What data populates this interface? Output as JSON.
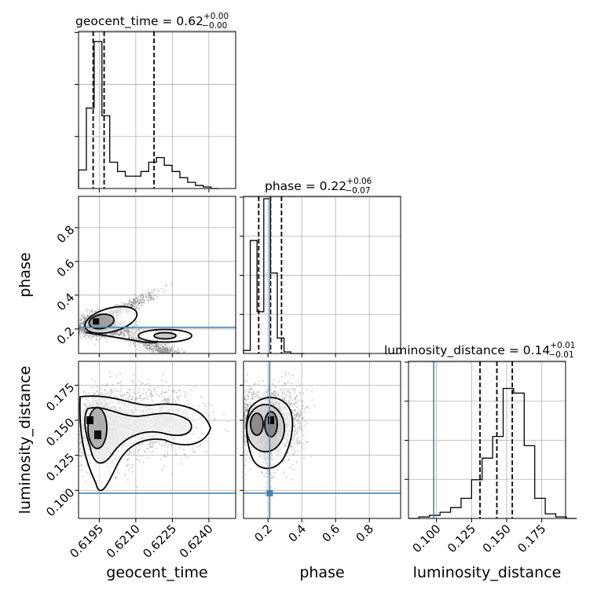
{
  "chart_data": {
    "type": "corner",
    "parameters": [
      "geocent_time",
      "phase",
      "luminosity_distance"
    ],
    "titles": [
      {
        "main": "geocent_time = 0.62",
        "sup": "+0.00",
        "sub": "−0.00"
      },
      {
        "main": "phase = 0.22",
        "sup": "+0.06",
        "sub": "−0.07"
      },
      {
        "main": "luminosity_distance = 0.14",
        "sup": "+0.01",
        "sub": "−0.01"
      }
    ],
    "axis_labels": {
      "x": [
        "geocent_time",
        "phase",
        "luminosity_distance"
      ],
      "y": [
        "phase",
        "luminosity_distance"
      ]
    },
    "ranges": {
      "geocent_time": [
        0.61865,
        0.6251
      ],
      "phase": [
        0.055,
        0.985
      ],
      "luminosity_distance": [
        0.08,
        0.192
      ]
    },
    "ticks": {
      "geocent_time": [
        0.6195,
        0.621,
        0.6225,
        0.624
      ],
      "phase": [
        0.2,
        0.4,
        0.6,
        0.8
      ],
      "luminosity_distance": [
        0.1,
        0.125,
        0.15,
        0.175
      ]
    },
    "tick_labels": {
      "geocent_time": [
        "0.6195",
        "0.6210",
        "0.6225",
        "0.6240"
      ],
      "phase": [
        "0.2",
        "0.4",
        "0.6",
        "0.8"
      ],
      "luminosity_distance": [
        "0.100",
        "0.125",
        "0.150",
        "0.175"
      ]
    },
    "truths": {
      "geocent_time": null,
      "phase": 0.21,
      "luminosity_distance": 0.098
    },
    "truth_color": "#4682b4",
    "quantiles": {
      "geocent_time": [
        0.61925,
        0.6197,
        0.62175
      ],
      "phase": [
        0.145,
        0.215,
        0.28
      ],
      "luminosity_distance": [
        0.131,
        0.143,
        0.154
      ]
    },
    "histograms": {
      "geocent_time": {
        "edges_start": 0.61865,
        "bin_width": 0.00032,
        "counts": [
          0.12,
          0.52,
          0.95,
          0.47,
          0.17,
          0.11,
          0.08,
          0.08,
          0.11,
          0.17,
          0.2,
          0.15,
          0.11,
          0.07,
          0.04,
          0.02,
          0.01,
          0
        ]
      },
      "phase": {
        "edges_start": 0.055,
        "bin_width": 0.04,
        "counts": [
          0.02,
          0.73,
          0.27,
          1.0,
          0.52,
          0.1,
          0.01,
          0,
          0
        ]
      },
      "luminosity_distance": {
        "edges_start": 0.08,
        "bin_width": 0.0075,
        "counts": [
          0,
          0.01,
          0.02,
          0.04,
          0.07,
          0.13,
          0.25,
          0.39,
          0.53,
          0.84,
          0.81,
          0.47,
          0.13,
          0.03,
          0.01,
          0
        ]
      }
    },
    "grid": true,
    "colors": {
      "hist": "#000000",
      "points": "#808080",
      "grid": "#b0b0b0"
    }
  }
}
